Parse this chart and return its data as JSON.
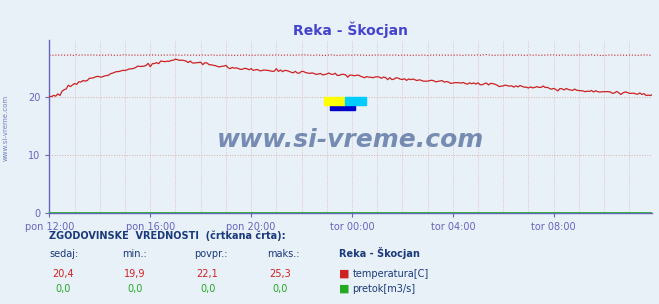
{
  "title": "Reka - Škocjan",
  "title_color": "#4444cc",
  "bg_color": "#e8f0f8",
  "plot_bg_color": "#e8f0f8",
  "grid_color_h": "#ddaaaa",
  "grid_color_v": "#ddaaaa",
  "axis_color": "#6666bb",
  "arrow_color": "#cc2222",
  "ylim": [
    0,
    30
  ],
  "yticks": [
    0,
    10,
    20
  ],
  "tick_color": "#6666bb",
  "xtick_labels": [
    "pon 12:00",
    "pon 16:00",
    "pon 20:00",
    "tor 00:00",
    "tor 04:00",
    "tor 08:00"
  ],
  "xtick_positions": [
    0,
    48,
    96,
    144,
    192,
    240
  ],
  "total_points": 288,
  "temp_color": "#cc2222",
  "temp_hist_color": "#cc2222",
  "flow_color": "#22aa22",
  "flow_hist_color": "#22aa22",
  "watermark": "www.si-vreme.com",
  "watermark_color": "#1a3a7a",
  "footer_header": "ZGODOVINSKE  VREDNOSTI  (črtkana črta):",
  "footer_color": "#1a3a7a",
  "footer_label1": "sedaj:",
  "footer_label2": "min.:",
  "footer_label3": "povpr.:",
  "footer_label4": "maks.:",
  "footer_label5": "Reka - Škocjan",
  "temp_sedaj": "20,4",
  "temp_min": "19,9",
  "temp_povpr": "22,1",
  "temp_maks": "25,3",
  "flow_sedaj": "0,0",
  "flow_min": "0,0",
  "flow_povpr": "0,0",
  "flow_maks": "0,0",
  "legend_temp": "temperatura[C]",
  "legend_flow": "pretok[m3/s]",
  "left_watermark": "www.si-vreme.com",
  "logo_yellow": "#ffff00",
  "logo_cyan": "#00ccff",
  "logo_blue": "#0000cc",
  "logo_green": "#00cc44"
}
